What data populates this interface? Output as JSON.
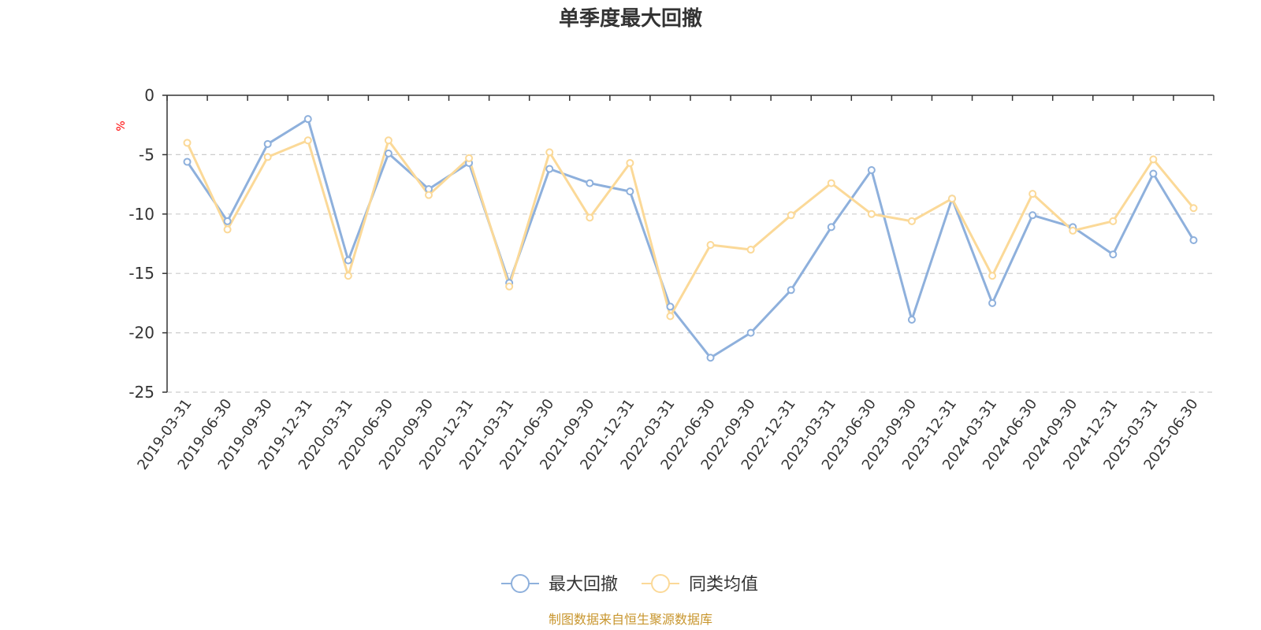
{
  "chart_data": {
    "type": "line",
    "title": "单季度最大回撤",
    "ylabel": "%",
    "ylim": [
      -25,
      0
    ],
    "yticks": [
      0,
      -5,
      -10,
      -15,
      -20,
      -25
    ],
    "grid": true,
    "legend_position": "bottom",
    "categories": [
      "2019-03-31",
      "2019-06-30",
      "2019-09-30",
      "2019-12-31",
      "2020-03-31",
      "2020-06-30",
      "2020-09-30",
      "2020-12-31",
      "2021-03-31",
      "2021-06-30",
      "2021-09-30",
      "2021-12-31",
      "2022-03-31",
      "2022-06-30",
      "2022-09-30",
      "2022-12-31",
      "2023-03-31",
      "2023-06-30",
      "2023-09-30",
      "2023-12-31",
      "2024-03-31",
      "2024-06-30",
      "2024-09-30",
      "2024-12-31",
      "2025-03-31",
      "2025-06-30"
    ],
    "series": [
      {
        "name": "最大回撤",
        "color": "#8eb0dc",
        "values": [
          -5.6,
          -10.6,
          -4.1,
          -2.0,
          -13.9,
          -4.9,
          -7.9,
          -5.7,
          -15.8,
          -6.2,
          -7.4,
          -8.1,
          -17.8,
          -22.1,
          -20.0,
          -16.4,
          -11.1,
          -6.3,
          -18.9,
          -8.7,
          -17.5,
          -10.1,
          -11.1,
          -13.4,
          -6.6,
          -12.2
        ]
      },
      {
        "name": "同类均值",
        "color": "#fbd998",
        "values": [
          -4.0,
          -11.3,
          -5.2,
          -3.8,
          -15.2,
          -3.8,
          -8.4,
          -5.3,
          -16.1,
          -4.8,
          -10.3,
          -5.7,
          -18.6,
          -12.6,
          -13.0,
          -10.1,
          -7.4,
          -10.0,
          -10.6,
          -8.7,
          -15.2,
          -8.3,
          -11.4,
          -10.6,
          -5.4,
          -9.5
        ]
      }
    ]
  },
  "footer": {
    "source_text": "制图数据来自恒生聚源数据库"
  }
}
